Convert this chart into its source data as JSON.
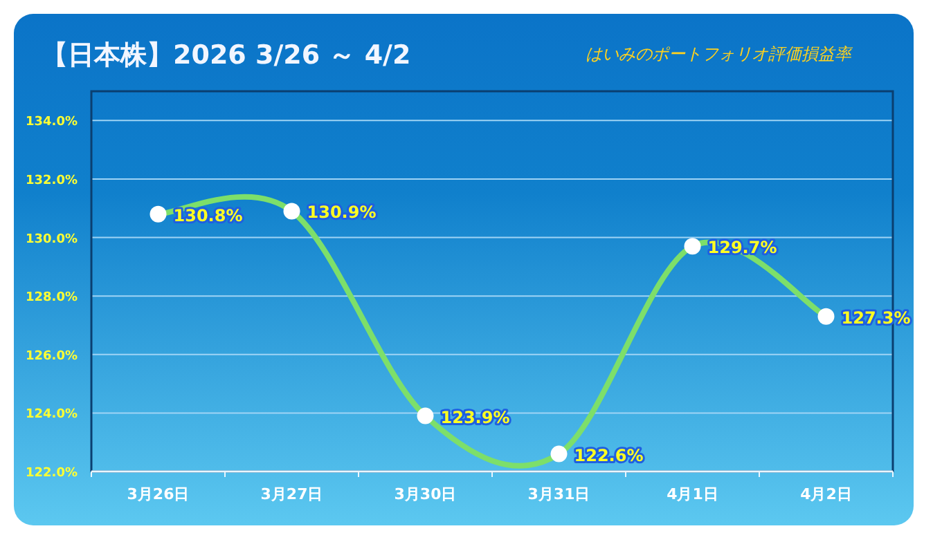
{
  "chart_data": {
    "type": "line",
    "title": "【日本株】2026 3/26 ～ 4/2",
    "subtitle": "はいみのポートフォリオ評価損益率",
    "categories": [
      "3月26日",
      "3月27日",
      "3月30日",
      "3月31日",
      "4月1日",
      "4月2日"
    ],
    "values": [
      130.8,
      130.9,
      123.9,
      122.6,
      129.7,
      127.3
    ],
    "value_labels": [
      "130.8%",
      "130.9%",
      "123.9%",
      "122.6%",
      "129.7%",
      "127.3%"
    ],
    "color": "#7ddf6a",
    "marker": "circle",
    "grid": "y",
    "ylim": [
      122,
      135
    ],
    "yticks": [
      {
        "value": 122,
        "label": "122.0%"
      },
      {
        "value": 124,
        "label": "124.0%"
      },
      {
        "value": 126,
        "label": "126.0%"
      },
      {
        "value": 128,
        "label": "128.0%"
      },
      {
        "value": 130,
        "label": "130.0%"
      },
      {
        "value": 132,
        "label": "132.0%"
      },
      {
        "value": 134,
        "label": "134.0%"
      }
    ]
  }
}
